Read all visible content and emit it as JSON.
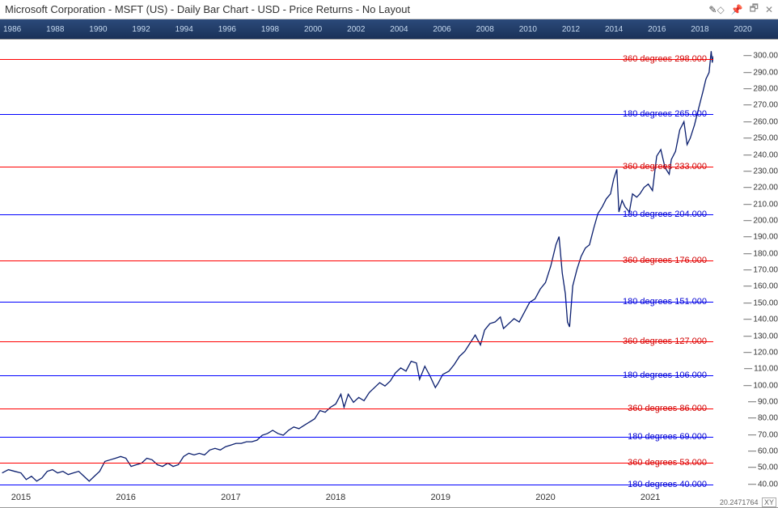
{
  "titlebar": {
    "title": "Microsoft Corporation - MSFT (US) - Daily Bar Chart - USD - Price Returns - No Layout"
  },
  "mini_timeline": {
    "years": [
      1986,
      1988,
      1990,
      1992,
      1994,
      1996,
      1998,
      2000,
      2002,
      2004,
      2006,
      2008,
      2010,
      2012,
      2014,
      2016,
      2018,
      2020
    ]
  },
  "chart": {
    "type": "line",
    "line_color": "#0a1e6e",
    "background_color": "#ffffff",
    "x_domain": [
      2014.8,
      2021.6
    ],
    "y_domain": [
      35,
      310
    ],
    "x_ticks": [
      2015,
      2016,
      2017,
      2018,
      2019,
      2020,
      2021
    ],
    "y_ticks": [
      40,
      50,
      60,
      70,
      80,
      90,
      100,
      110,
      120,
      130,
      140,
      150,
      160,
      170,
      180,
      190,
      200,
      210,
      220,
      230,
      240,
      250,
      260,
      270,
      280,
      290,
      300
    ],
    "y_tick_format": ".00",
    "horizontal_lines": [
      {
        "value": 298.0,
        "label": "360  degrees  298.000",
        "color": "#ff0000",
        "text_color": "#d10000"
      },
      {
        "value": 265.0,
        "label": "180  degrees  265.000",
        "color": "#0000ff",
        "text_color": "#0000d1"
      },
      {
        "value": 233.0,
        "label": "360  degrees  233.000",
        "color": "#ff0000",
        "text_color": "#d10000"
      },
      {
        "value": 204.0,
        "label": "180  degrees  204.000",
        "color": "#0000ff",
        "text_color": "#0000d1"
      },
      {
        "value": 176.0,
        "label": "360  degrees  176.000",
        "color": "#ff0000",
        "text_color": "#d10000"
      },
      {
        "value": 151.0,
        "label": "180  degrees  151.000",
        "color": "#0000ff",
        "text_color": "#0000d1"
      },
      {
        "value": 127.0,
        "label": "360  degrees  127.000",
        "color": "#ff0000",
        "text_color": "#d10000"
      },
      {
        "value": 106.0,
        "label": "180  degrees  106.000",
        "color": "#0000ff",
        "text_color": "#0000d1"
      },
      {
        "value": 86.0,
        "label": "360  degrees  86.000",
        "color": "#ff0000",
        "text_color": "#d10000"
      },
      {
        "value": 69.0,
        "label": "180  degrees  69.000",
        "color": "#0000ff",
        "text_color": "#0000d1"
      },
      {
        "value": 53.0,
        "label": "360  degrees  53.000",
        "color": "#ff0000",
        "text_color": "#d10000"
      },
      {
        "value": 40.0,
        "label": "180  degrees  40.000",
        "color": "#0000ff",
        "text_color": "#0000d1"
      }
    ],
    "series": [
      {
        "x": 2014.82,
        "y": 46
      },
      {
        "x": 2014.88,
        "y": 48
      },
      {
        "x": 2014.94,
        "y": 47
      },
      {
        "x": 2015.0,
        "y": 46
      },
      {
        "x": 2015.05,
        "y": 42
      },
      {
        "x": 2015.1,
        "y": 44
      },
      {
        "x": 2015.15,
        "y": 41
      },
      {
        "x": 2015.2,
        "y": 43
      },
      {
        "x": 2015.25,
        "y": 47
      },
      {
        "x": 2015.3,
        "y": 48
      },
      {
        "x": 2015.35,
        "y": 46
      },
      {
        "x": 2015.4,
        "y": 47
      },
      {
        "x": 2015.45,
        "y": 45
      },
      {
        "x": 2015.5,
        "y": 46
      },
      {
        "x": 2015.55,
        "y": 47
      },
      {
        "x": 2015.6,
        "y": 44
      },
      {
        "x": 2015.65,
        "y": 41
      },
      {
        "x": 2015.7,
        "y": 44
      },
      {
        "x": 2015.75,
        "y": 47
      },
      {
        "x": 2015.8,
        "y": 53
      },
      {
        "x": 2015.85,
        "y": 54
      },
      {
        "x": 2015.9,
        "y": 55
      },
      {
        "x": 2015.95,
        "y": 56
      },
      {
        "x": 2016.0,
        "y": 55
      },
      {
        "x": 2016.05,
        "y": 50
      },
      {
        "x": 2016.1,
        "y": 51
      },
      {
        "x": 2016.15,
        "y": 52
      },
      {
        "x": 2016.2,
        "y": 55
      },
      {
        "x": 2016.25,
        "y": 54
      },
      {
        "x": 2016.3,
        "y": 51
      },
      {
        "x": 2016.35,
        "y": 50
      },
      {
        "x": 2016.4,
        "y": 52
      },
      {
        "x": 2016.45,
        "y": 50
      },
      {
        "x": 2016.5,
        "y": 51
      },
      {
        "x": 2016.55,
        "y": 56
      },
      {
        "x": 2016.6,
        "y": 58
      },
      {
        "x": 2016.65,
        "y": 57
      },
      {
        "x": 2016.7,
        "y": 58
      },
      {
        "x": 2016.75,
        "y": 57
      },
      {
        "x": 2016.8,
        "y": 60
      },
      {
        "x": 2016.85,
        "y": 61
      },
      {
        "x": 2016.9,
        "y": 60
      },
      {
        "x": 2016.95,
        "y": 62
      },
      {
        "x": 2017.0,
        "y": 63
      },
      {
        "x": 2017.05,
        "y": 64
      },
      {
        "x": 2017.1,
        "y": 64
      },
      {
        "x": 2017.15,
        "y": 65
      },
      {
        "x": 2017.2,
        "y": 65
      },
      {
        "x": 2017.25,
        "y": 66
      },
      {
        "x": 2017.3,
        "y": 69
      },
      {
        "x": 2017.35,
        "y": 70
      },
      {
        "x": 2017.4,
        "y": 72
      },
      {
        "x": 2017.45,
        "y": 70
      },
      {
        "x": 2017.5,
        "y": 69
      },
      {
        "x": 2017.55,
        "y": 72
      },
      {
        "x": 2017.6,
        "y": 74
      },
      {
        "x": 2017.65,
        "y": 73
      },
      {
        "x": 2017.7,
        "y": 75
      },
      {
        "x": 2017.75,
        "y": 77
      },
      {
        "x": 2017.8,
        "y": 79
      },
      {
        "x": 2017.85,
        "y": 84
      },
      {
        "x": 2017.9,
        "y": 83
      },
      {
        "x": 2017.95,
        "y": 86
      },
      {
        "x": 2018.0,
        "y": 88
      },
      {
        "x": 2018.05,
        "y": 94
      },
      {
        "x": 2018.08,
        "y": 86
      },
      {
        "x": 2018.12,
        "y": 94
      },
      {
        "x": 2018.17,
        "y": 89
      },
      {
        "x": 2018.22,
        "y": 92
      },
      {
        "x": 2018.27,
        "y": 90
      },
      {
        "x": 2018.32,
        "y": 95
      },
      {
        "x": 2018.37,
        "y": 98
      },
      {
        "x": 2018.42,
        "y": 101
      },
      {
        "x": 2018.47,
        "y": 99
      },
      {
        "x": 2018.52,
        "y": 102
      },
      {
        "x": 2018.57,
        "y": 107
      },
      {
        "x": 2018.62,
        "y": 110
      },
      {
        "x": 2018.67,
        "y": 108
      },
      {
        "x": 2018.72,
        "y": 114
      },
      {
        "x": 2018.77,
        "y": 113
      },
      {
        "x": 2018.8,
        "y": 103
      },
      {
        "x": 2018.85,
        "y": 111
      },
      {
        "x": 2018.9,
        "y": 105
      },
      {
        "x": 2018.95,
        "y": 98
      },
      {
        "x": 2018.98,
        "y": 101
      },
      {
        "x": 2019.02,
        "y": 106
      },
      {
        "x": 2019.08,
        "y": 108
      },
      {
        "x": 2019.13,
        "y": 112
      },
      {
        "x": 2019.18,
        "y": 117
      },
      {
        "x": 2019.23,
        "y": 120
      },
      {
        "x": 2019.28,
        "y": 125
      },
      {
        "x": 2019.33,
        "y": 130
      },
      {
        "x": 2019.38,
        "y": 124
      },
      {
        "x": 2019.42,
        "y": 133
      },
      {
        "x": 2019.47,
        "y": 137
      },
      {
        "x": 2019.52,
        "y": 138
      },
      {
        "x": 2019.57,
        "y": 141
      },
      {
        "x": 2019.6,
        "y": 134
      },
      {
        "x": 2019.65,
        "y": 137
      },
      {
        "x": 2019.7,
        "y": 140
      },
      {
        "x": 2019.75,
        "y": 138
      },
      {
        "x": 2019.8,
        "y": 144
      },
      {
        "x": 2019.85,
        "y": 150
      },
      {
        "x": 2019.9,
        "y": 152
      },
      {
        "x": 2019.95,
        "y": 158
      },
      {
        "x": 2020.0,
        "y": 162
      },
      {
        "x": 2020.05,
        "y": 172
      },
      {
        "x": 2020.1,
        "y": 185
      },
      {
        "x": 2020.13,
        "y": 190
      },
      {
        "x": 2020.16,
        "y": 168
      },
      {
        "x": 2020.19,
        "y": 155
      },
      {
        "x": 2020.21,
        "y": 138
      },
      {
        "x": 2020.23,
        "y": 135
      },
      {
        "x": 2020.26,
        "y": 160
      },
      {
        "x": 2020.3,
        "y": 170
      },
      {
        "x": 2020.34,
        "y": 178
      },
      {
        "x": 2020.38,
        "y": 183
      },
      {
        "x": 2020.42,
        "y": 185
      },
      {
        "x": 2020.46,
        "y": 195
      },
      {
        "x": 2020.5,
        "y": 204
      },
      {
        "x": 2020.54,
        "y": 208
      },
      {
        "x": 2020.58,
        "y": 213
      },
      {
        "x": 2020.62,
        "y": 216
      },
      {
        "x": 2020.65,
        "y": 225
      },
      {
        "x": 2020.68,
        "y": 231
      },
      {
        "x": 2020.7,
        "y": 205
      },
      {
        "x": 2020.73,
        "y": 212
      },
      {
        "x": 2020.76,
        "y": 208
      },
      {
        "x": 2020.8,
        "y": 205
      },
      {
        "x": 2020.83,
        "y": 216
      },
      {
        "x": 2020.87,
        "y": 214
      },
      {
        "x": 2020.9,
        "y": 216
      },
      {
        "x": 2020.94,
        "y": 220
      },
      {
        "x": 2020.98,
        "y": 222
      },
      {
        "x": 2021.02,
        "y": 218
      },
      {
        "x": 2021.06,
        "y": 239
      },
      {
        "x": 2021.1,
        "y": 243
      },
      {
        "x": 2021.14,
        "y": 232
      },
      {
        "x": 2021.18,
        "y": 228
      },
      {
        "x": 2021.2,
        "y": 237
      },
      {
        "x": 2021.24,
        "y": 242
      },
      {
        "x": 2021.28,
        "y": 255
      },
      {
        "x": 2021.32,
        "y": 260
      },
      {
        "x": 2021.35,
        "y": 246
      },
      {
        "x": 2021.38,
        "y": 250
      },
      {
        "x": 2021.42,
        "y": 258
      },
      {
        "x": 2021.46,
        "y": 268
      },
      {
        "x": 2021.5,
        "y": 278
      },
      {
        "x": 2021.53,
        "y": 286
      },
      {
        "x": 2021.56,
        "y": 290
      },
      {
        "x": 2021.58,
        "y": 303
      },
      {
        "x": 2021.59,
        "y": 296
      },
      {
        "x": 2021.6,
        "y": 300
      }
    ]
  },
  "status": {
    "coord_text": "20.2471764",
    "xy_label": "XY"
  }
}
